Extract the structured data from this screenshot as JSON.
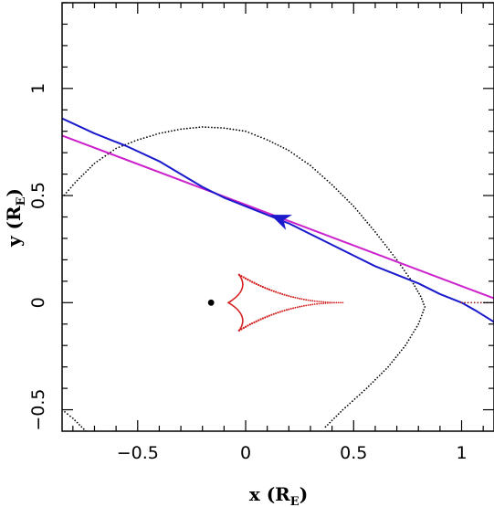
{
  "chart_data": {
    "type": "line",
    "xlabel": {
      "main": "x (R",
      "sub": "E",
      "close": ")"
    },
    "ylabel": {
      "main": "y (R",
      "sub": "E",
      "close": ")"
    },
    "xlim": [
      -0.85,
      1.15
    ],
    "ylim": [
      -0.6,
      1.4
    ],
    "x_ticks": [
      -0.5,
      0,
      0.5,
      1
    ],
    "x_tick_labels": [
      "−0.5",
      "0",
      "0.5",
      "1"
    ],
    "y_ticks": [
      -0.5,
      0,
      0.5,
      1
    ],
    "y_tick_labels": [
      "−0.5",
      "0",
      "0.5",
      "1"
    ],
    "minor_step": 0.1,
    "grid": false,
    "lens_point": {
      "x": -0.16,
      "y": 0.0,
      "color": "#000000"
    },
    "series": [
      {
        "kind": "dotted-curve",
        "color": "#000000",
        "points": [
          [
            -0.85,
            0.49
          ],
          [
            -0.79,
            0.56
          ],
          [
            -0.7,
            0.65
          ],
          [
            -0.6,
            0.72
          ],
          [
            -0.5,
            0.76
          ],
          [
            -0.4,
            0.79
          ],
          [
            -0.3,
            0.81
          ],
          [
            -0.2,
            0.82
          ],
          [
            -0.1,
            0.815
          ],
          [
            0.0,
            0.8
          ],
          [
            0.1,
            0.76
          ],
          [
            0.2,
            0.71
          ],
          [
            0.3,
            0.64
          ],
          [
            0.4,
            0.55
          ],
          [
            0.5,
            0.45
          ],
          [
            0.6,
            0.33
          ],
          [
            0.7,
            0.2
          ],
          [
            0.77,
            0.1
          ],
          [
            0.81,
            0.03
          ],
          [
            0.83,
            -0.02
          ],
          [
            0.8,
            -0.1
          ],
          [
            0.74,
            -0.2
          ],
          [
            0.66,
            -0.3
          ],
          [
            0.56,
            -0.4
          ],
          [
            0.45,
            -0.5
          ],
          [
            0.37,
            -0.58
          ]
        ]
      },
      {
        "kind": "dotted-curve",
        "color": "#000000",
        "points": [
          [
            -0.85,
            -0.5
          ],
          [
            -0.8,
            -0.54
          ],
          [
            -0.74,
            -0.6
          ]
        ]
      },
      {
        "kind": "line",
        "color": "#cc22cc",
        "points": [
          [
            -0.85,
            0.78
          ],
          [
            1.15,
            0.02
          ]
        ]
      },
      {
        "kind": "line",
        "color": "#1a1acc",
        "points": [
          [
            -0.85,
            0.86
          ],
          [
            -0.7,
            0.79
          ],
          [
            -0.55,
            0.73
          ],
          [
            -0.4,
            0.66
          ],
          [
            -0.3,
            0.6
          ],
          [
            -0.2,
            0.54
          ],
          [
            -0.1,
            0.49
          ],
          [
            0.0,
            0.45
          ],
          [
            0.1,
            0.41
          ],
          [
            0.2,
            0.37
          ],
          [
            0.3,
            0.32
          ],
          [
            0.4,
            0.27
          ],
          [
            0.5,
            0.22
          ],
          [
            0.6,
            0.17
          ],
          [
            0.7,
            0.13
          ],
          [
            0.8,
            0.09
          ],
          [
            0.9,
            0.04
          ],
          [
            1.0,
            0.0
          ],
          [
            1.07,
            -0.04
          ],
          [
            1.15,
            -0.09
          ]
        ]
      },
      {
        "kind": "caustic",
        "color": "#d42020",
        "cusps": [
          [
            -0.08,
            0.0
          ],
          [
            -0.03,
            0.13
          ],
          [
            -0.03,
            -0.13
          ],
          [
            0.45,
            0.0
          ]
        ]
      },
      {
        "kind": "dotted-curve",
        "color": "#8a1a1a",
        "points": [
          [
            1.0,
            0.0
          ],
          [
            1.15,
            0.0
          ]
        ]
      }
    ],
    "arrow": {
      "x": 0.2,
      "y": 0.375,
      "dx": -0.26,
      "dy": 0.1,
      "color": "#1a1acc"
    }
  }
}
